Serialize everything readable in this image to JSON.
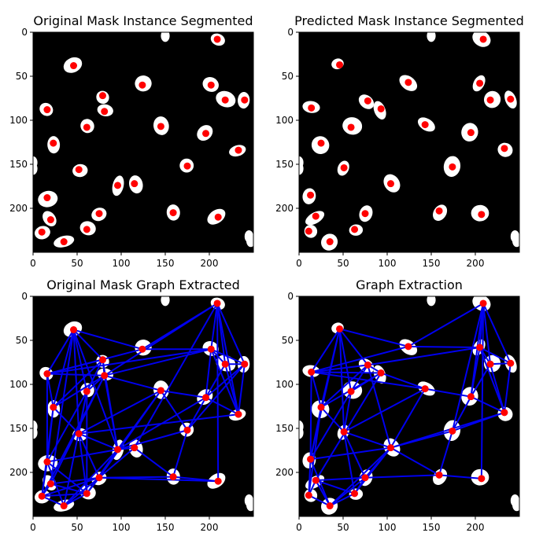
{
  "figure": {
    "background": "#ffffff"
  },
  "chart_data": [
    {
      "type": "scatter",
      "title": "Original Mask Instance Segmented",
      "xlabel": "",
      "ylabel": "",
      "xlim": [
        0,
        250
      ],
      "ylim": [
        250,
        0
      ],
      "xticks": [
        "0",
        "50",
        "100",
        "150",
        "200"
      ],
      "yticks": [
        "0",
        "50",
        "100",
        "150",
        "200"
      ],
      "colors": {
        "background": "#000000",
        "blob": "#ffffff",
        "centroid": "#ff0000"
      },
      "points": [
        [
          209,
          8
        ],
        [
          46,
          38
        ],
        [
          124,
          60
        ],
        [
          202,
          60
        ],
        [
          79,
          72
        ],
        [
          16,
          88
        ],
        [
          81,
          90
        ],
        [
          218,
          77
        ],
        [
          240,
          77
        ],
        [
          145,
          107
        ],
        [
          61,
          108
        ],
        [
          196,
          115
        ],
        [
          23,
          126
        ],
        [
          233,
          134
        ],
        [
          52,
          156
        ],
        [
          175,
          152
        ],
        [
          96,
          174
        ],
        [
          115,
          172
        ],
        [
          16,
          188
        ],
        [
          20,
          213
        ],
        [
          75,
          206
        ],
        [
          159,
          205
        ],
        [
          210,
          210
        ],
        [
          61,
          224
        ],
        [
          10,
          227
        ],
        [
          35,
          238
        ]
      ]
    },
    {
      "type": "scatter",
      "title": "Predicted Mask Instance Segmented",
      "xlabel": "",
      "ylabel": "",
      "xlim": [
        0,
        250
      ],
      "ylim": [
        250,
        0
      ],
      "xticks": [
        "0",
        "50",
        "100",
        "150",
        "200"
      ],
      "yticks": [
        "0",
        "50",
        "100",
        "150",
        "200"
      ],
      "colors": {
        "background": "#000000",
        "blob": "#ffffff",
        "centroid": "#ff0000"
      },
      "points": [
        [
          209,
          8
        ],
        [
          46,
          37
        ],
        [
          124,
          57
        ],
        [
          205,
          58
        ],
        [
          78,
          78
        ],
        [
          14,
          86
        ],
        [
          93,
          87
        ],
        [
          217,
          77
        ],
        [
          240,
          76
        ],
        [
          143,
          105
        ],
        [
          59,
          108
        ],
        [
          195,
          114
        ],
        [
          25,
          126
        ],
        [
          233,
          132
        ],
        [
          51,
          154
        ],
        [
          174,
          153
        ],
        [
          104,
          172
        ],
        [
          13,
          185
        ],
        [
          19,
          209
        ],
        [
          75,
          206
        ],
        [
          159,
          203
        ],
        [
          207,
          207
        ],
        [
          63,
          224
        ],
        [
          11,
          226
        ],
        [
          35,
          238
        ]
      ]
    },
    {
      "type": "scatter",
      "title": "Original Mask Graph Extracted",
      "xlabel": "",
      "ylabel": "",
      "xlim": [
        0,
        250
      ],
      "ylim": [
        250,
        0
      ],
      "xticks": [
        "0",
        "50",
        "100",
        "150",
        "200"
      ],
      "yticks": [
        "0",
        "50",
        "100",
        "150",
        "200"
      ],
      "colors": {
        "background": "#000000",
        "blob": "#ffffff",
        "centroid": "#ff0000",
        "edge": "#0000ee"
      },
      "points": [
        [
          209,
          8
        ],
        [
          46,
          38
        ],
        [
          124,
          60
        ],
        [
          202,
          60
        ],
        [
          79,
          72
        ],
        [
          16,
          88
        ],
        [
          81,
          90
        ],
        [
          218,
          77
        ],
        [
          240,
          77
        ],
        [
          145,
          107
        ],
        [
          61,
          108
        ],
        [
          196,
          115
        ],
        [
          23,
          126
        ],
        [
          233,
          134
        ],
        [
          52,
          156
        ],
        [
          175,
          152
        ],
        [
          96,
          174
        ],
        [
          115,
          172
        ],
        [
          16,
          188
        ],
        [
          20,
          213
        ],
        [
          75,
          206
        ],
        [
          159,
          205
        ],
        [
          210,
          210
        ],
        [
          61,
          224
        ],
        [
          10,
          227
        ],
        [
          35,
          238
        ]
      ],
      "edges": [
        [
          0,
          2
        ],
        [
          0,
          3
        ],
        [
          0,
          6
        ],
        [
          0,
          7
        ],
        [
          0,
          8
        ],
        [
          0,
          17
        ],
        [
          0,
          22
        ],
        [
          0,
          13
        ],
        [
          1,
          2
        ],
        [
          1,
          4
        ],
        [
          1,
          5
        ],
        [
          1,
          10
        ],
        [
          1,
          12
        ],
        [
          1,
          14
        ],
        [
          1,
          16
        ],
        [
          1,
          19
        ],
        [
          2,
          3
        ],
        [
          2,
          5
        ],
        [
          3,
          7
        ],
        [
          3,
          8
        ],
        [
          3,
          11
        ],
        [
          3,
          13
        ],
        [
          3,
          6
        ],
        [
          4,
          5
        ],
        [
          4,
          6
        ],
        [
          4,
          10
        ],
        [
          4,
          16
        ],
        [
          4,
          12
        ],
        [
          5,
          12
        ],
        [
          5,
          18
        ],
        [
          5,
          6
        ],
        [
          5,
          3
        ],
        [
          6,
          10
        ],
        [
          6,
          16
        ],
        [
          6,
          12
        ],
        [
          6,
          19
        ],
        [
          6,
          24
        ],
        [
          7,
          8
        ],
        [
          7,
          11
        ],
        [
          7,
          13
        ],
        [
          8,
          13
        ],
        [
          8,
          15
        ],
        [
          8,
          11
        ],
        [
          9,
          6
        ],
        [
          9,
          16
        ],
        [
          9,
          15
        ],
        [
          9,
          11
        ],
        [
          9,
          20
        ],
        [
          9,
          14
        ],
        [
          10,
          14
        ],
        [
          10,
          18
        ],
        [
          11,
          13
        ],
        [
          11,
          15
        ],
        [
          11,
          16
        ],
        [
          12,
          18
        ],
        [
          12,
          24
        ],
        [
          12,
          14
        ],
        [
          13,
          14
        ],
        [
          14,
          16
        ],
        [
          14,
          20
        ],
        [
          14,
          23
        ],
        [
          15,
          16
        ],
        [
          15,
          21
        ],
        [
          16,
          17
        ],
        [
          16,
          20
        ],
        [
          16,
          23
        ],
        [
          16,
          18
        ],
        [
          16,
          25
        ],
        [
          17,
          20
        ],
        [
          17,
          21
        ],
        [
          18,
          23
        ],
        [
          18,
          24
        ],
        [
          18,
          25
        ],
        [
          19,
          23
        ],
        [
          19,
          24
        ],
        [
          19,
          20
        ],
        [
          20,
          22
        ],
        [
          20,
          21
        ],
        [
          20,
          23
        ],
        [
          20,
          25
        ],
        [
          21,
          22
        ],
        [
          23,
          25
        ],
        [
          24,
          25
        ],
        [
          24,
          20
        ],
        [
          23,
          24
        ],
        [
          10,
          23
        ],
        [
          10,
          25
        ]
      ]
    },
    {
      "type": "scatter",
      "title": "Graph Extraction",
      "xlabel": "",
      "ylabel": "",
      "xlim": [
        0,
        250
      ],
      "ylim": [
        250,
        0
      ],
      "xticks": [
        "0",
        "50",
        "100",
        "150",
        "200"
      ],
      "yticks": [
        "0",
        "50",
        "100",
        "150",
        "200"
      ],
      "colors": {
        "background": "#000000",
        "blob": "#ffffff",
        "centroid": "#ff0000",
        "edge": "#0000ee"
      },
      "points": [
        [
          209,
          8
        ],
        [
          46,
          37
        ],
        [
          124,
          57
        ],
        [
          205,
          58
        ],
        [
          78,
          78
        ],
        [
          14,
          86
        ],
        [
          93,
          87
        ],
        [
          217,
          77
        ],
        [
          240,
          76
        ],
        [
          143,
          105
        ],
        [
          59,
          108
        ],
        [
          195,
          114
        ],
        [
          25,
          126
        ],
        [
          233,
          132
        ],
        [
          51,
          154
        ],
        [
          174,
          153
        ],
        [
          104,
          172
        ],
        [
          13,
          185
        ],
        [
          19,
          209
        ],
        [
          75,
          206
        ],
        [
          159,
          203
        ],
        [
          207,
          207
        ],
        [
          63,
          224
        ],
        [
          11,
          226
        ],
        [
          35,
          238
        ]
      ],
      "edges": [
        [
          0,
          2
        ],
        [
          0,
          3
        ],
        [
          0,
          7
        ],
        [
          0,
          8
        ],
        [
          0,
          11
        ],
        [
          0,
          15
        ],
        [
          0,
          21
        ],
        [
          1,
          2
        ],
        [
          1,
          4
        ],
        [
          1,
          5
        ],
        [
          1,
          10
        ],
        [
          1,
          12
        ],
        [
          1,
          14
        ],
        [
          1,
          17
        ],
        [
          2,
          3
        ],
        [
          2,
          5
        ],
        [
          3,
          7
        ],
        [
          3,
          8
        ],
        [
          3,
          11
        ],
        [
          3,
          13
        ],
        [
          3,
          4
        ],
        [
          4,
          5
        ],
        [
          4,
          6
        ],
        [
          4,
          10
        ],
        [
          4,
          16
        ],
        [
          4,
          12
        ],
        [
          5,
          12
        ],
        [
          5,
          17
        ],
        [
          5,
          6
        ],
        [
          6,
          10
        ],
        [
          6,
          9
        ],
        [
          6,
          12
        ],
        [
          6,
          18
        ],
        [
          7,
          8
        ],
        [
          7,
          11
        ],
        [
          7,
          13
        ],
        [
          8,
          13
        ],
        [
          9,
          5
        ],
        [
          9,
          11
        ],
        [
          9,
          16
        ],
        [
          9,
          14
        ],
        [
          10,
          14
        ],
        [
          10,
          17
        ],
        [
          11,
          13
        ],
        [
          11,
          15
        ],
        [
          12,
          17
        ],
        [
          12,
          23
        ],
        [
          12,
          14
        ],
        [
          13,
          15
        ],
        [
          13,
          16
        ],
        [
          14,
          16
        ],
        [
          14,
          19
        ],
        [
          14,
          22
        ],
        [
          15,
          16
        ],
        [
          15,
          20
        ],
        [
          16,
          19
        ],
        [
          16,
          22
        ],
        [
          16,
          17
        ],
        [
          16,
          24
        ],
        [
          17,
          23
        ],
        [
          17,
          24
        ],
        [
          18,
          22
        ],
        [
          18,
          23
        ],
        [
          18,
          19
        ],
        [
          19,
          20
        ],
        [
          19,
          22
        ],
        [
          19,
          24
        ],
        [
          20,
          21
        ],
        [
          22,
          24
        ],
        [
          23,
          24
        ],
        [
          16,
          20
        ],
        [
          18,
          24
        ]
      ]
    }
  ]
}
